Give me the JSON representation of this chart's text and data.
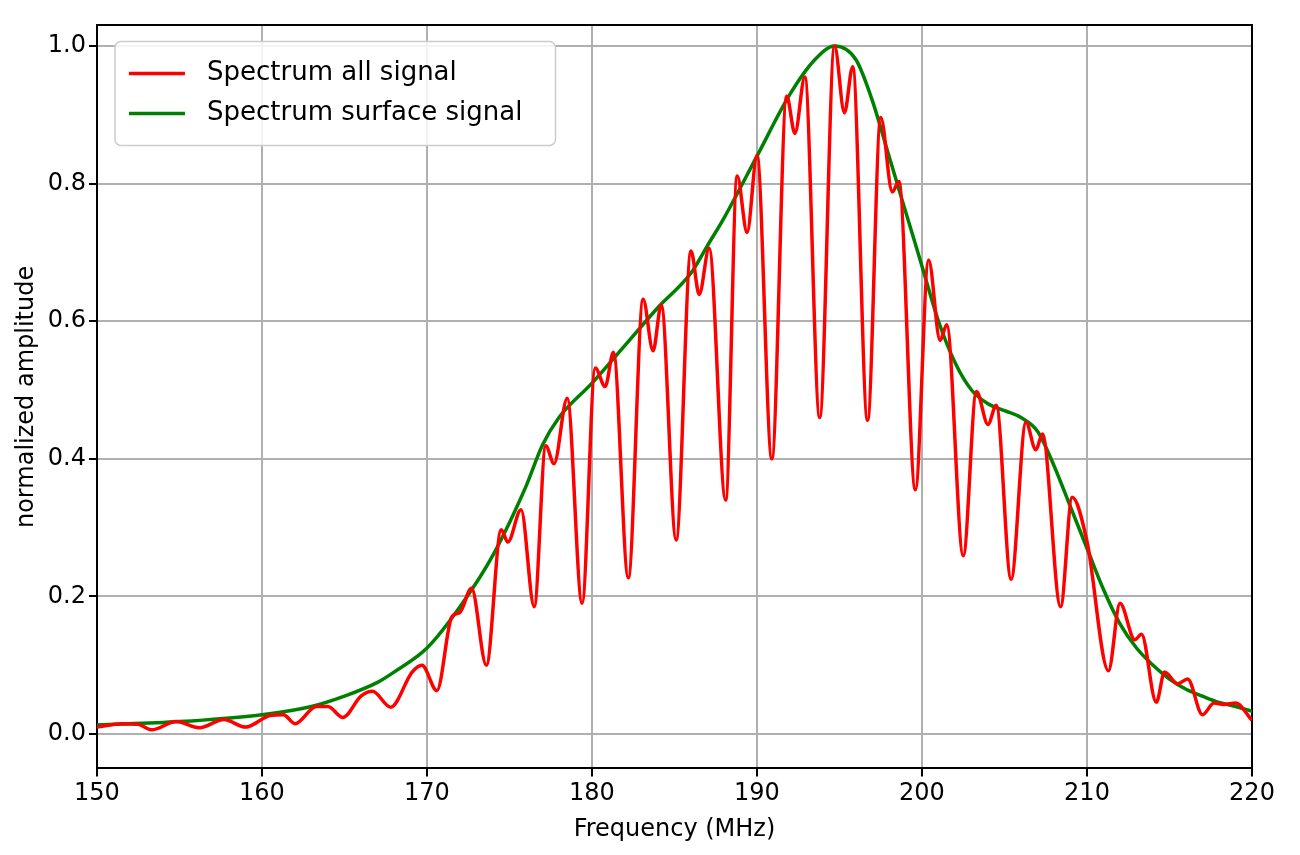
{
  "chart_data": {
    "type": "line",
    "xlabel": "Frequency (MHz)",
    "ylabel": "normalized amplitude",
    "xlim": [
      150,
      220
    ],
    "xticks": [
      150,
      160,
      170,
      180,
      190,
      200,
      210,
      220
    ],
    "ylim": [
      -0.05,
      1.03
    ],
    "yticks": [
      {
        "value": 0,
        "label": "0.0"
      },
      0.2,
      0.4,
      0.6,
      0.8,
      {
        "value": 1,
        "label": "1.0"
      }
    ],
    "grid": true,
    "legend": "top left",
    "marker": "none",
    "line_style": "solid",
    "series": [
      {
        "name": "Spectrum all signal",
        "color": "#ff0000",
        "x": [
          150,
          151.5,
          152.5,
          153.3,
          154.8,
          156.2,
          157.7,
          159.0,
          160.5,
          161.3,
          162.0,
          163.3,
          164.0,
          164.9,
          166.0,
          166.7,
          167.8,
          169.1,
          169.7,
          170.6,
          171.5,
          172.0,
          172.7,
          173.6,
          174.5,
          174.9,
          175.7,
          176.5,
          177.2,
          177.7,
          178.5,
          179.4,
          180.2,
          180.8,
          181.3,
          182.2,
          183.1,
          183.7,
          184.2,
          185.1,
          186.0,
          186.5,
          187.1,
          188.1,
          188.8,
          189.4,
          190.0,
          190.9,
          191.8,
          192.3,
          192.9,
          193.8,
          194.7,
          195.3,
          195.8,
          196.7,
          197.5,
          198.2,
          198.6,
          199.6,
          200.4,
          201.1,
          201.5,
          202.5,
          203.3,
          204.0,
          204.5,
          205.4,
          206.3,
          206.9,
          207.3,
          208.4,
          209.1,
          210.0,
          211.3,
          212.0,
          212.9,
          213.3,
          214.2,
          214.7,
          215.5,
          216.1,
          217.0,
          217.7,
          218.3,
          219.0,
          220.0
        ],
        "values": [
          0.01,
          0.015,
          0.014,
          0.006,
          0.018,
          0.009,
          0.021,
          0.01,
          0.027,
          0.028,
          0.015,
          0.04,
          0.04,
          0.024,
          0.055,
          0.062,
          0.039,
          0.09,
          0.1,
          0.063,
          0.17,
          0.177,
          0.212,
          0.1,
          0.297,
          0.279,
          0.326,
          0.185,
          0.419,
          0.393,
          0.488,
          0.19,
          0.532,
          0.505,
          0.555,
          0.227,
          0.632,
          0.557,
          0.624,
          0.282,
          0.702,
          0.639,
          0.706,
          0.34,
          0.811,
          0.729,
          0.841,
          0.4,
          0.927,
          0.873,
          0.955,
          0.46,
          1.0,
          0.903,
          0.97,
          0.456,
          0.896,
          0.788,
          0.803,
          0.355,
          0.689,
          0.572,
          0.595,
          0.259,
          0.498,
          0.45,
          0.478,
          0.225,
          0.453,
          0.413,
          0.436,
          0.185,
          0.344,
          0.28,
          0.092,
          0.19,
          0.137,
          0.145,
          0.046,
          0.09,
          0.073,
          0.08,
          0.028,
          0.045,
          0.043,
          0.045,
          0.02
        ]
      },
      {
        "name": "Spectrum surface signal",
        "color": "#008000",
        "x": [
          150,
          155,
          160,
          163,
          165,
          167,
          168,
          170,
          172,
          174,
          176,
          177,
          178,
          180,
          182,
          184,
          186,
          187,
          188,
          190,
          192,
          193.5,
          194.7,
          196,
          197,
          198,
          199,
          200,
          201,
          202,
          203,
          204,
          205,
          206,
          207,
          208,
          209,
          210,
          211,
          212,
          213,
          214,
          215,
          216,
          217,
          218,
          219,
          220
        ],
        "values": [
          0.013,
          0.018,
          0.028,
          0.04,
          0.055,
          0.075,
          0.09,
          0.125,
          0.185,
          0.26,
          0.36,
          0.42,
          0.46,
          0.51,
          0.565,
          0.62,
          0.67,
          0.71,
          0.75,
          0.84,
          0.93,
          0.98,
          1.0,
          0.98,
          0.92,
          0.84,
          0.76,
          0.68,
          0.6,
          0.54,
          0.5,
          0.48,
          0.47,
          0.46,
          0.44,
          0.39,
          0.33,
          0.27,
          0.21,
          0.16,
          0.125,
          0.1,
          0.08,
          0.065,
          0.055,
          0.046,
          0.04,
          0.033
        ]
      }
    ]
  }
}
